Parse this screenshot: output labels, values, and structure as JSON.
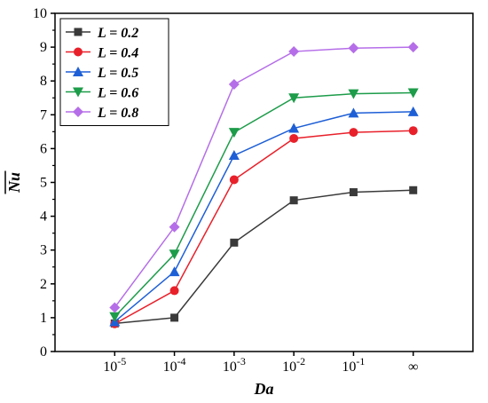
{
  "chart_data": {
    "type": "line",
    "xlabel": "Da",
    "ylabel": "Nu",
    "ylim": [
      0,
      10
    ],
    "yticks": [
      0,
      1,
      2,
      3,
      4,
      5,
      6,
      7,
      8,
      9,
      10
    ],
    "categories": [
      {
        "base": "10",
        "exp": "-5"
      },
      {
        "base": "10",
        "exp": "-4"
      },
      {
        "base": "10",
        "exp": "-3"
      },
      {
        "base": "10",
        "exp": "-2"
      },
      {
        "base": "10",
        "exp": "-1"
      },
      {
        "base": "∞",
        "exp": ""
      }
    ],
    "legend_position": "top-left",
    "grid": false,
    "series": [
      {
        "name": "L = 0.2",
        "color": "#3a3a3a",
        "marker": "square",
        "values": [
          0.83,
          1.0,
          3.22,
          4.47,
          4.71,
          4.77
        ]
      },
      {
        "name": "L = 0.4",
        "color": "#e8202a",
        "marker": "circle",
        "values": [
          0.82,
          1.8,
          5.08,
          6.3,
          6.48,
          6.53
        ]
      },
      {
        "name": "L = 0.5",
        "color": "#1e5fd6",
        "marker": "triangle-up",
        "values": [
          0.88,
          2.36,
          5.8,
          6.6,
          7.05,
          7.09
        ]
      },
      {
        "name": "L = 0.6",
        "color": "#1d9c4a",
        "marker": "triangle-down",
        "values": [
          1.03,
          2.88,
          6.48,
          7.5,
          7.62,
          7.65
        ]
      },
      {
        "name": "L = 0.8",
        "color": "#b56ee8",
        "marker": "diamond",
        "values": [
          1.3,
          3.68,
          7.9,
          8.87,
          8.97,
          9.0
        ]
      }
    ]
  }
}
